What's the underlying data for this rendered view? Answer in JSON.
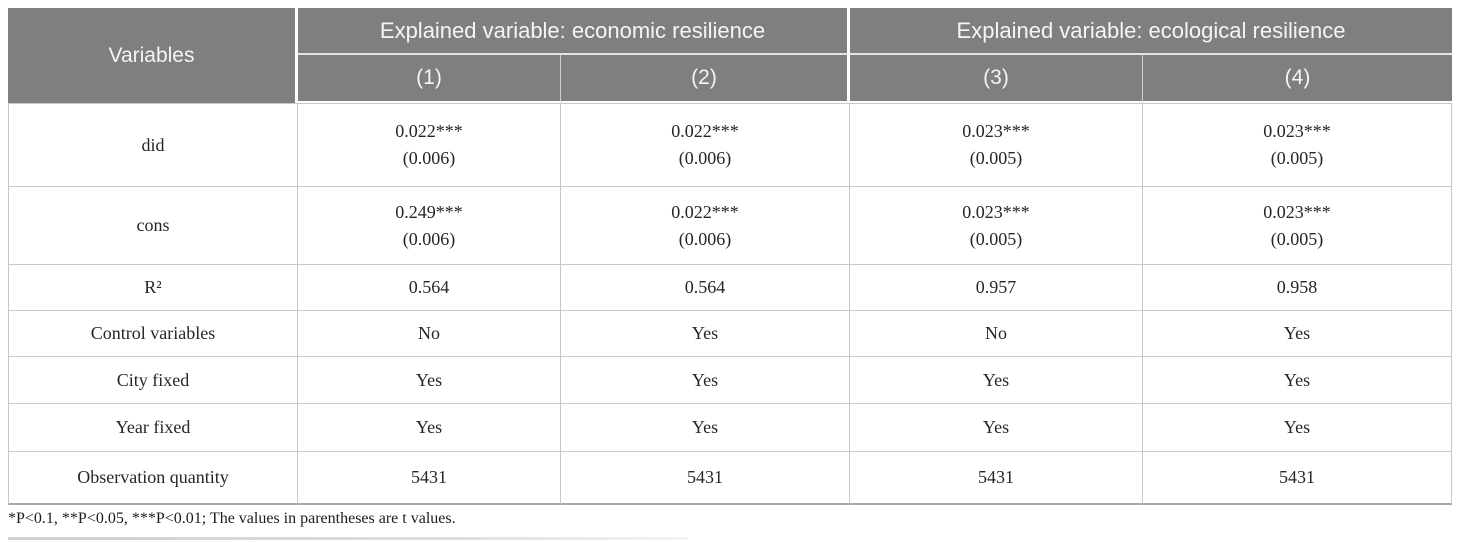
{
  "page": {
    "footnote": "*P<0.1, **P<0.05, ***P<0.01; The values in parentheses are t values."
  },
  "table": {
    "header": {
      "variables": "Variables",
      "groups": [
        {
          "label": "Explained variable: economic resilience",
          "cols": [
            "(1)",
            "(2)"
          ]
        },
        {
          "label": "Explained variable: ecological resilience",
          "cols": [
            "(3)",
            "(4)"
          ]
        }
      ]
    },
    "rows": [
      {
        "label": "did",
        "values": [
          "0.022***",
          "0.022***",
          "0.023***",
          "0.023***"
        ],
        "tvalues": [
          "(0.006)",
          "(0.006)",
          "(0.005)",
          "(0.005)"
        ]
      },
      {
        "label": "cons",
        "values": [
          "0.249***",
          "0.022***",
          "0.023***",
          "0.023***"
        ],
        "tvalues": [
          "(0.006)",
          "(0.006)",
          "(0.005)",
          "(0.005)"
        ]
      },
      {
        "label": "R²",
        "values": [
          "0.564",
          "0.564",
          "0.957",
          "0.958"
        ]
      },
      {
        "label": "Control variables",
        "values": [
          "No",
          "Yes",
          "No",
          "Yes"
        ]
      },
      {
        "label": "City fixed",
        "values": [
          "Yes",
          "Yes",
          "Yes",
          "Yes"
        ]
      },
      {
        "label": "Year fixed",
        "values": [
          "Yes",
          "Yes",
          "Yes",
          "Yes"
        ]
      },
      {
        "label": "Observation quantity",
        "values": [
          "5431",
          "5431",
          "5431",
          "5431"
        ]
      }
    ],
    "colors": {
      "header_bg": "#7f7f7f",
      "header_text": "#f5f5f5",
      "grid_line": "#c8c8c8",
      "table_bottom_border": "#a6a6a6"
    }
  }
}
